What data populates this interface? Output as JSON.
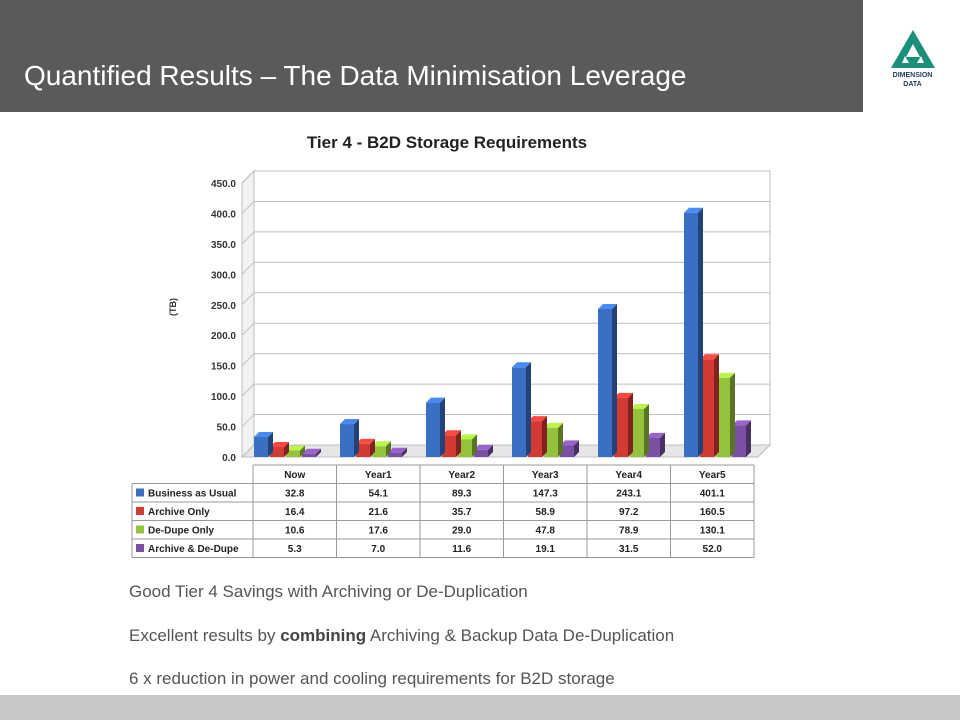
{
  "header": {
    "title": "Quantified Results – The Data Minimisation Leverage"
  },
  "logo": {
    "line1": "DIMENSION",
    "line2": "DATA",
    "color": "#1a8f7a"
  },
  "chart_data": {
    "type": "bar",
    "title": "Tier 4 - B2D Storage Requirements",
    "ylabel": "(TB)",
    "xlabel": "",
    "ylim": [
      0,
      450
    ],
    "yticks": [
      "0.0",
      "50.0",
      "100.0",
      "150.0",
      "200.0",
      "250.0",
      "300.0",
      "350.0",
      "400.0",
      "450.0"
    ],
    "categories": [
      "Now",
      "Year1",
      "Year2",
      "Year3",
      "Year4",
      "Year5"
    ],
    "grid": true,
    "legend": "table-below",
    "series": [
      {
        "name": "Business as Usual",
        "color": "#3a6fc4",
        "values": [
          32.8,
          54.1,
          89.3,
          147.3,
          243.1,
          401.1
        ],
        "labels": [
          "32.8",
          "54.1",
          "89.3",
          "147.3",
          "243.1",
          "401.1"
        ]
      },
      {
        "name": "Archive Only",
        "color": "#d23a33",
        "values": [
          16.4,
          21.6,
          35.7,
          58.9,
          97.2,
          160.5
        ],
        "labels": [
          "16.4",
          "21.6",
          "35.7",
          "58.9",
          "97.2",
          "160.5"
        ]
      },
      {
        "name": "De-Dupe Only",
        "color": "#94c23c",
        "values": [
          10.6,
          17.6,
          29.0,
          47.8,
          78.9,
          130.1
        ],
        "labels": [
          "10.6",
          "17.6",
          "29.0",
          "47.8",
          "78.9",
          "130.1"
        ]
      },
      {
        "name": "Archive & De-Dupe",
        "color": "#7a4fa4",
        "values": [
          5.3,
          7.0,
          11.6,
          19.1,
          31.5,
          52.0
        ],
        "labels": [
          "5.3",
          "7.0",
          "11.6",
          "19.1",
          "31.5",
          "52.0"
        ]
      }
    ]
  },
  "bullets": {
    "line1": "Good  Tier 4 Savings with Archiving or De-Duplication",
    "line2_pre": "Excellent results by ",
    "line2_bold": "combining",
    "line2_post": " Archiving & Backup Data De-Duplication",
    "line3": "6 x reduction in power and cooling requirements for B2D storage"
  }
}
